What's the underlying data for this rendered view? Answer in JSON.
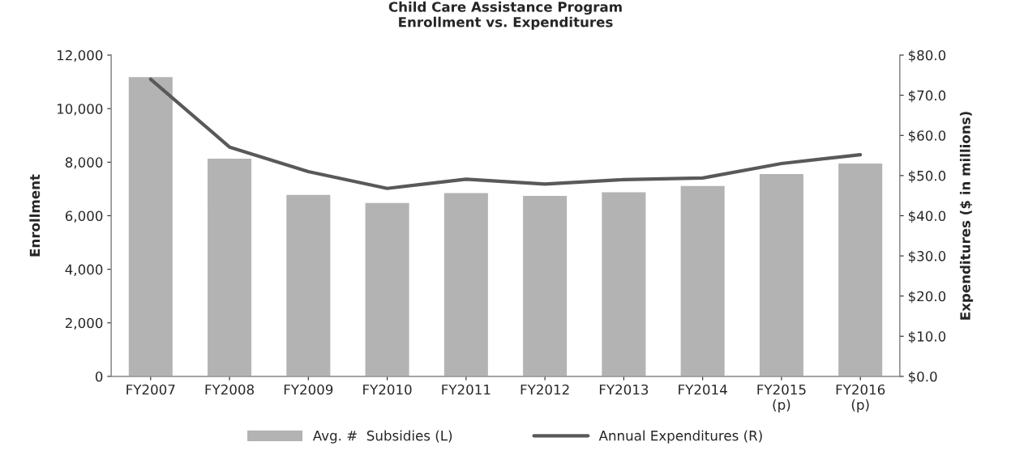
{
  "chart_data": {
    "type": "bar",
    "title": "Child Care Assistance Program\nEnrollment vs. Expenditures",
    "ylabel": "Enrollment",
    "y2label": "Expenditures ($ in millions)",
    "categories": [
      "FY2007",
      "FY2008",
      "FY2009",
      "FY2010",
      "FY2011",
      "FY2012",
      "FY2013",
      "FY2014",
      "FY2015\n(p)",
      "FY2016\n(p)"
    ],
    "series": [
      {
        "name": "Avg. #  Subsidies (L)",
        "color": "#b3b3b3",
        "values": [
          11200,
          8150,
          6800,
          6500,
          6870,
          6760,
          6900,
          7130,
          7580,
          7970
        ]
      },
      {
        "name": "Annual Expenditures (R)",
        "type": "line",
        "axis": "y2",
        "color": "#595959",
        "values": [
          74.0,
          57.1,
          51.0,
          46.8,
          49.1,
          47.9,
          49.0,
          49.4,
          53.0,
          55.2
        ]
      }
    ],
    "ylim": [
      0,
      12000
    ],
    "yticks": [
      {
        "value": 0,
        "label": "0"
      },
      {
        "value": 2000,
        "label": "2,000"
      },
      {
        "value": 4000,
        "label": "4,000"
      },
      {
        "value": 6000,
        "label": "6,000"
      },
      {
        "value": 8000,
        "label": "8,000"
      },
      {
        "value": 10000,
        "label": "10,000"
      },
      {
        "value": 12000,
        "label": "12,000"
      }
    ],
    "y2lim": [
      0,
      80
    ],
    "y2ticks": [
      {
        "value": 0,
        "label": "$0.0"
      },
      {
        "value": 10,
        "label": "$10.0"
      },
      {
        "value": 20,
        "label": "$20.0"
      },
      {
        "value": 30,
        "label": "$30.0"
      },
      {
        "value": 40,
        "label": "$40.0"
      },
      {
        "value": 50,
        "label": "$50.0"
      },
      {
        "value": 60,
        "label": "$60.0"
      },
      {
        "value": 70,
        "label": "$70.0"
      },
      {
        "value": 80,
        "label": "$80.0"
      }
    ],
    "grid": false,
    "legend": "bottom",
    "marker": "none",
    "line_style": "solid"
  }
}
